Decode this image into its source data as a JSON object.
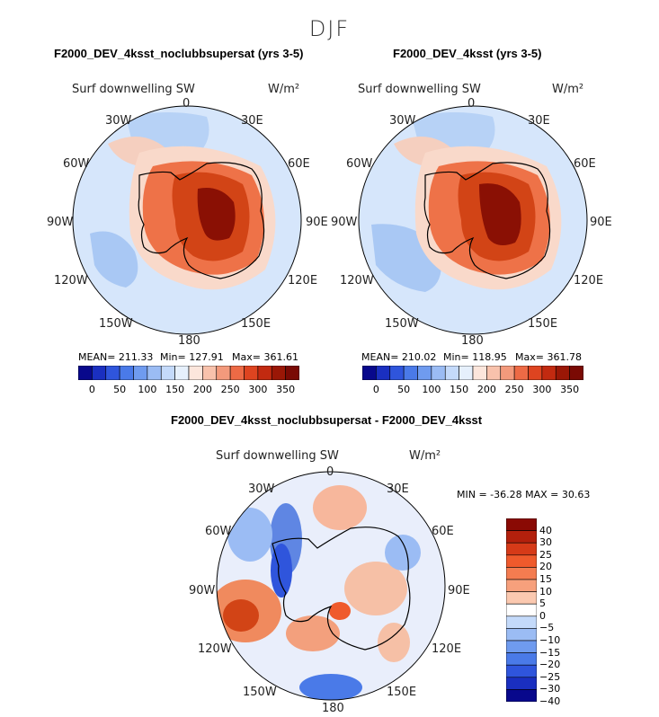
{
  "main_title": "DJF",
  "panels": [
    {
      "title": "F2000_DEV_4ksst_noclubbsupersat (yrs 3-5)",
      "variable": "Surf downwelling SW",
      "units": "W/m²",
      "lon_labels": {
        "top": "0",
        "tr": "30E",
        "rt": "60E",
        "right": "90E",
        "rb": "120E",
        "br": "150E",
        "bottom": "180",
        "bl": "150W",
        "lb": "120W",
        "left": "90W",
        "lt": "60W",
        "tl": "30W"
      },
      "stats": {
        "mean": "MEAN= 211.33",
        "min": "Min= 127.91",
        "max": "Max= 361.61"
      },
      "colorbar_ticks": [
        "0",
        "50",
        "100",
        "150",
        "200",
        "250",
        "300",
        "350"
      ]
    },
    {
      "title": "F2000_DEV_4ksst (yrs 3-5)",
      "variable": "Surf downwelling SW",
      "units": "W/m²",
      "lon_labels": {
        "top": "0",
        "tr": "30E",
        "rt": "60E",
        "right": "90E",
        "rb": "120E",
        "br": "150E",
        "bottom": "180",
        "bl": "150W",
        "lb": "120W",
        "left": "90W",
        "lt": "60W",
        "tl": "30W"
      },
      "stats": {
        "mean": "MEAN= 210.02",
        "min": "Min= 118.95",
        "max": "Max= 361.78"
      },
      "colorbar_ticks": [
        "0",
        "50",
        "100",
        "150",
        "200",
        "250",
        "300",
        "350"
      ]
    },
    {
      "title": "F2000_DEV_4ksst_noclubbsupersat - F2000_DEV_4ksst",
      "variable": "Surf downwelling SW",
      "units": "W/m²",
      "lon_labels": {
        "top": "0",
        "tr": "30E",
        "rt": "60E",
        "right": "90E",
        "rb": "120E",
        "br": "150E",
        "bottom": "180",
        "bl": "150W",
        "lb": "120W",
        "left": "90W",
        "lt": "60W",
        "tl": "30W"
      },
      "stats": {
        "min_max": "MIN = -36.28 MAX =   30.63"
      },
      "colorbar_ticks": [
        "40",
        "30",
        "25",
        "20",
        "15",
        "10",
        "5",
        "0",
        "−5",
        "−10",
        "−15",
        "−20",
        "−25",
        "−30",
        "−40"
      ]
    }
  ],
  "colors": {
    "abs_scale": [
      "#08088c",
      "#1a2fc0",
      "#2f55dc",
      "#4a7ae8",
      "#6f9bef",
      "#9bbcf4",
      "#c4dafa",
      "#e6f0fc",
      "#fce6dc",
      "#f8c2ac",
      "#f39a7c",
      "#ed6a45",
      "#de4420",
      "#c22a10",
      "#9a1706",
      "#7a0a04"
    ],
    "diff_scale": [
      "#8a0a04",
      "#b3200c",
      "#d63a18",
      "#ef5a2c",
      "#f47c50",
      "#f7a07c",
      "#fbc9b0",
      "#ffffff",
      "#c4dafa",
      "#9bbcf4",
      "#6f9bef",
      "#4a7ae8",
      "#2f55dc",
      "#1a2fc0",
      "#08088c"
    ],
    "land_line": "#000000"
  }
}
